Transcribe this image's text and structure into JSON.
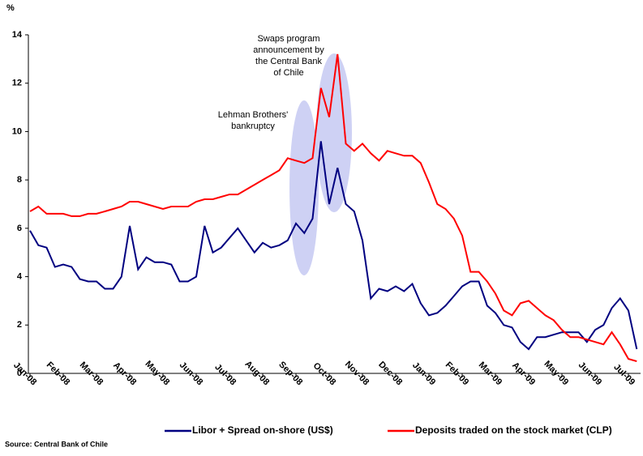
{
  "chart_data": {
    "type": "line",
    "y_unit": "%",
    "source": "Source: Central Bank of Chile",
    "categories": [
      "Jan-08",
      null,
      null,
      null,
      "Feb-08",
      null,
      null,
      null,
      "Mar-08",
      null,
      null,
      null,
      "Apr-08",
      null,
      null,
      null,
      "May-08",
      null,
      null,
      null,
      "Jun-08",
      null,
      null,
      null,
      "Jul-08",
      null,
      null,
      null,
      "Aug-08",
      null,
      null,
      null,
      "Sep-08",
      null,
      null,
      null,
      "Oct-08",
      null,
      null,
      null,
      "Nov-08",
      null,
      null,
      null,
      "Dec-08",
      null,
      null,
      null,
      "Jan-09",
      null,
      null,
      null,
      "Feb-09",
      null,
      null,
      null,
      "Mar-09",
      null,
      null,
      null,
      "Apr-09",
      null,
      null,
      null,
      "May-09",
      null,
      null,
      null,
      "Jun-09",
      null,
      null,
      null,
      "Jul-09",
      null
    ],
    "series": [
      {
        "name": "Libor + Spread on-shore (US$)",
        "color": "#000080",
        "values": [
          5.9,
          5.3,
          5.2,
          4.4,
          4.5,
          4.4,
          3.9,
          3.8,
          3.8,
          3.5,
          3.5,
          4.0,
          6.1,
          4.3,
          4.8,
          4.6,
          4.6,
          4.5,
          3.8,
          3.8,
          4.0,
          6.1,
          5.0,
          5.2,
          5.6,
          6.0,
          5.5,
          5.0,
          5.4,
          5.2,
          5.3,
          5.5,
          6.2,
          5.8,
          6.4,
          9.6,
          7.0,
          8.5,
          7.0,
          6.7,
          5.5,
          3.1,
          3.5,
          3.4,
          3.6,
          3.4,
          3.7,
          2.9,
          2.4,
          2.5,
          2.8,
          3.2,
          3.6,
          3.8,
          3.8,
          2.8,
          2.5,
          2.0,
          1.9,
          1.3,
          1.0,
          1.5,
          1.5,
          1.6,
          1.7,
          1.7,
          1.7,
          1.3,
          1.8,
          2.0,
          2.7,
          3.1,
          2.6,
          1.0
        ]
      },
      {
        "name": "Deposits traded on the stock market (CLP)",
        "color": "#ff0000",
        "values": [
          6.7,
          6.9,
          6.6,
          6.6,
          6.6,
          6.5,
          6.5,
          6.6,
          6.6,
          6.7,
          6.8,
          6.9,
          7.1,
          7.1,
          7.0,
          6.9,
          6.8,
          6.9,
          6.9,
          6.9,
          7.1,
          7.2,
          7.2,
          7.3,
          7.4,
          7.4,
          7.6,
          7.8,
          8.0,
          8.2,
          8.4,
          8.9,
          8.8,
          8.7,
          8.9,
          11.8,
          10.6,
          13.2,
          9.5,
          9.2,
          9.5,
          9.1,
          8.8,
          9.2,
          9.1,
          9.0,
          9.0,
          8.7,
          7.9,
          7.0,
          6.8,
          6.4,
          5.7,
          4.2,
          4.2,
          3.8,
          3.3,
          2.6,
          2.4,
          2.9,
          3.0,
          2.7,
          2.4,
          2.2,
          1.8,
          1.5,
          1.5,
          1.4,
          1.3,
          1.2,
          1.7,
          1.2,
          0.6,
          0.5
        ]
      }
    ],
    "ylim": [
      0,
      14
    ],
    "yticks": [
      0,
      2,
      4,
      6,
      8,
      10,
      12,
      14
    ],
    "annotations": [
      {
        "lines": [
          "Lehman Brothers'",
          "bankruptcy"
        ]
      },
      {
        "lines": [
          "Swaps program",
          "announcement by",
          "the Central Bank",
          "of Chile"
        ]
      }
    ]
  }
}
